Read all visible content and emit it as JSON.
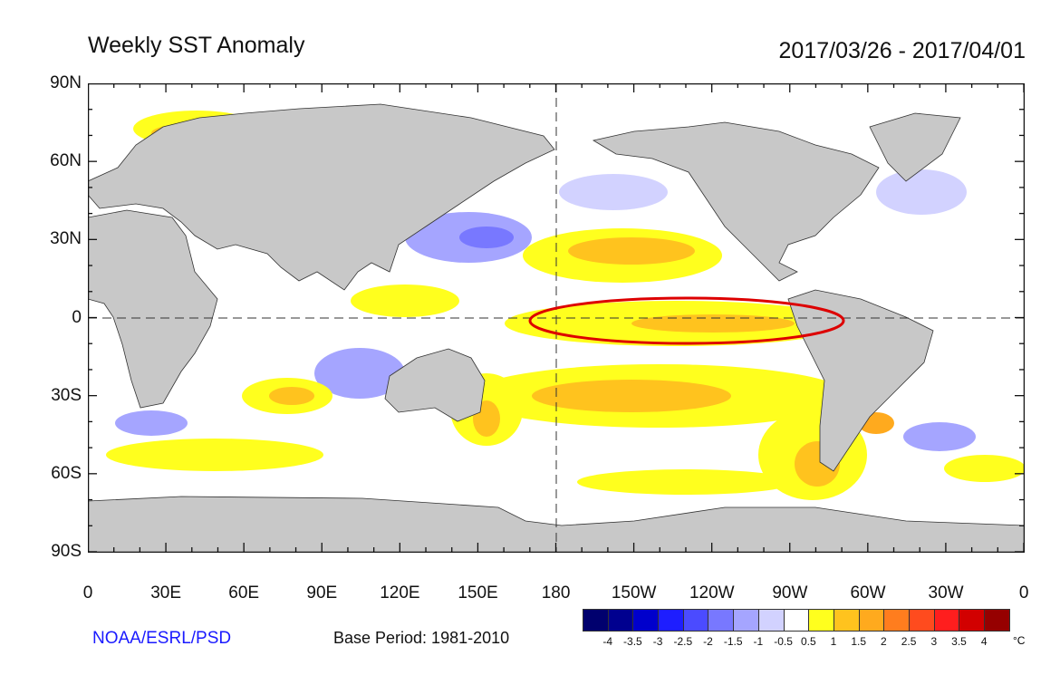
{
  "title": "Weekly SST Anomaly",
  "date_range": "2017/03/26 - 2017/04/01",
  "credit": "NOAA/ESRL/PSD",
  "base_period": "Base Period: 1981-2010",
  "lat_labels": [
    "90N",
    "60N",
    "30N",
    "0",
    "30S",
    "60S",
    "90S"
  ],
  "lon_labels": [
    "0",
    "30E",
    "60E",
    "90E",
    "120E",
    "150E",
    "180",
    "150W",
    "120W",
    "90W",
    "60W",
    "30W",
    "0"
  ],
  "colorbar": {
    "unit": "°C",
    "labels": [
      "-4",
      "-3.5",
      "-3",
      "-2.5",
      "-2",
      "-1.5",
      "-1",
      "-0.5",
      "0.5",
      "1",
      "1.5",
      "2",
      "2.5",
      "3",
      "3.5",
      "4"
    ],
    "colors": [
      "#00006e",
      "#00008f",
      "#0000cc",
      "#1e1eff",
      "#4b4bff",
      "#7878ff",
      "#a5a5ff",
      "#d2d2ff",
      "#ffffff",
      "#ffff1e",
      "#ffc31e",
      "#ffaa1e",
      "#ff7d1e",
      "#ff4b1e",
      "#ff1e1e",
      "#d20000",
      "#960000"
    ]
  },
  "colors": {
    "land": "#c8c8c8",
    "highlight_ellipse": "#dd0000"
  }
}
